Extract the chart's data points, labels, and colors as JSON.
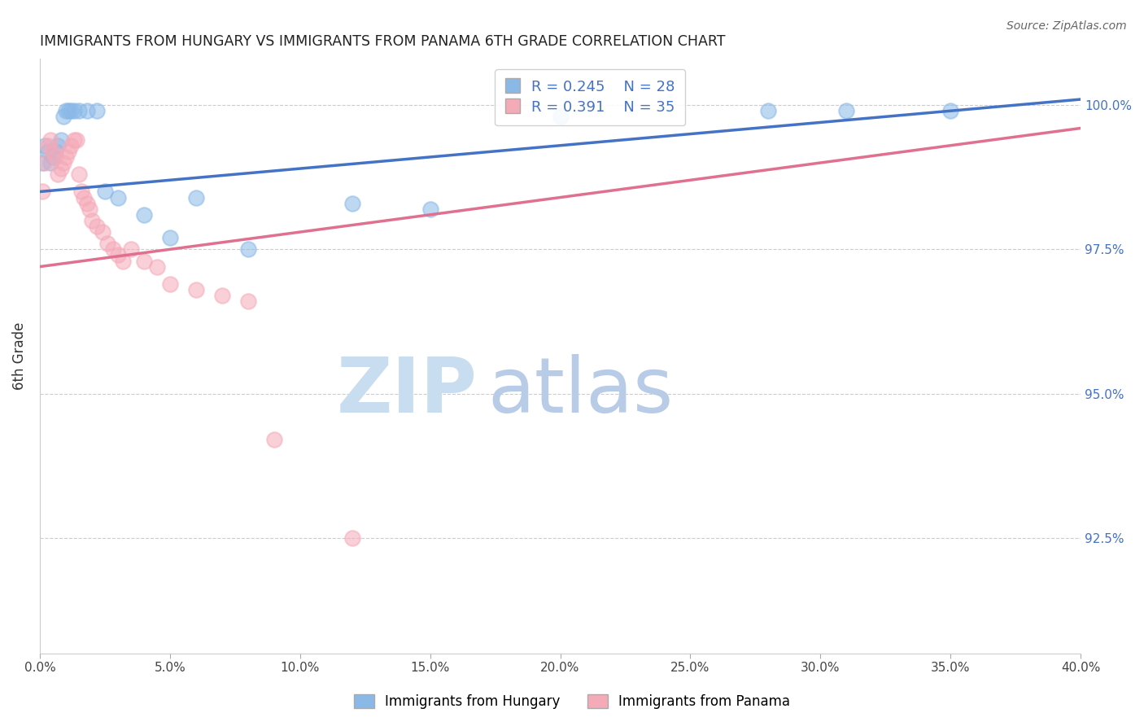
{
  "title": "IMMIGRANTS FROM HUNGARY VS IMMIGRANTS FROM PANAMA 6TH GRADE CORRELATION CHART",
  "source": "Source: ZipAtlas.com",
  "ylabel": "6th Grade",
  "yaxis_labels": [
    "100.0%",
    "97.5%",
    "95.0%",
    "92.5%"
  ],
  "yaxis_values": [
    1.0,
    0.975,
    0.95,
    0.925
  ],
  "xaxis_values": [
    0.0,
    0.05,
    0.1,
    0.15,
    0.2,
    0.25,
    0.3,
    0.35,
    0.4
  ],
  "legend_hungary_R": "0.245",
  "legend_hungary_N": "28",
  "legend_panama_R": "0.391",
  "legend_panama_N": "35",
  "hungary_x": [
    0.001,
    0.002,
    0.003,
    0.004,
    0.005,
    0.006,
    0.007,
    0.008,
    0.009,
    0.01,
    0.011,
    0.012,
    0.013,
    0.015,
    0.018,
    0.022,
    0.025,
    0.03,
    0.04,
    0.05,
    0.06,
    0.08,
    0.12,
    0.15,
    0.2,
    0.28,
    0.31,
    0.35
  ],
  "hungary_y": [
    0.99,
    0.993,
    0.992,
    0.99,
    0.991,
    0.992,
    0.993,
    0.994,
    0.998,
    0.999,
    0.999,
    0.999,
    0.999,
    0.999,
    0.999,
    0.999,
    0.985,
    0.984,
    0.981,
    0.977,
    0.984,
    0.975,
    0.983,
    0.982,
    0.998,
    0.999,
    0.999,
    0.999
  ],
  "panama_x": [
    0.001,
    0.002,
    0.003,
    0.004,
    0.005,
    0.006,
    0.007,
    0.008,
    0.009,
    0.01,
    0.011,
    0.012,
    0.013,
    0.014,
    0.015,
    0.016,
    0.017,
    0.018,
    0.019,
    0.02,
    0.022,
    0.024,
    0.026,
    0.028,
    0.03,
    0.032,
    0.035,
    0.04,
    0.045,
    0.05,
    0.06,
    0.07,
    0.08,
    0.09,
    0.12
  ],
  "panama_y": [
    0.985,
    0.99,
    0.993,
    0.994,
    0.992,
    0.991,
    0.988,
    0.989,
    0.99,
    0.991,
    0.992,
    0.993,
    0.994,
    0.994,
    0.988,
    0.985,
    0.984,
    0.983,
    0.982,
    0.98,
    0.979,
    0.978,
    0.976,
    0.975,
    0.974,
    0.973,
    0.975,
    0.973,
    0.972,
    0.969,
    0.968,
    0.967,
    0.966,
    0.942,
    0.925
  ],
  "hungary_color": "#8ab9e8",
  "panama_color": "#f5aab8",
  "hungary_line_color": "#4472c4",
  "panama_line_color": "#e07090",
  "background_color": "#ffffff",
  "grid_color": "#cccccc",
  "watermark_zip": "ZIP",
  "watermark_atlas": "atlas",
  "watermark_color_zip": "#c8ddf0",
  "watermark_color_atlas": "#b8cce8"
}
